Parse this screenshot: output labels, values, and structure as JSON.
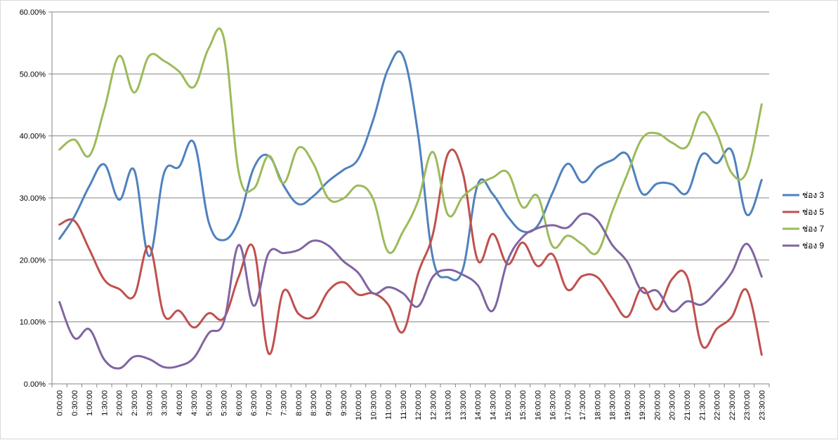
{
  "chart_data": {
    "type": "line",
    "title": "",
    "xlabel": "",
    "ylabel": "",
    "ylim": [
      0,
      60
    ],
    "y_tick_values": [
      0,
      10,
      20,
      30,
      40,
      50,
      60
    ],
    "y_tick_labels": [
      "0.00%",
      "10.00%",
      "20.00%",
      "30.00%",
      "40.00%",
      "50.00%",
      "60.00%"
    ],
    "grid": "horizontal",
    "legend_position": "right",
    "categories": [
      "0:00:00",
      "0:30:00",
      "1:00:00",
      "1:30:00",
      "2:00:00",
      "2:30:00",
      "3:00:00",
      "3:30:00",
      "4:00:00",
      "4:30:00",
      "5:00:00",
      "5:30:00",
      "6:00:00",
      "6:30:00",
      "7:00:00",
      "7:30:00",
      "8:00:00",
      "8:30:00",
      "9:00:00",
      "9:30:00",
      "10:00:00",
      "10:30:00",
      "11:00:00",
      "11:30:00",
      "12:00:00",
      "12:30:00",
      "13:00:00",
      "13:30:00",
      "14:00:00",
      "14:30:00",
      "15:00:00",
      "15:30:00",
      "16:00:00",
      "16:30:00",
      "17:00:00",
      "17:30:00",
      "18:00:00",
      "18:30:00",
      "19:00:00",
      "19:30:00",
      "20:00:00",
      "20:30:00",
      "21:00:00",
      "21:30:00",
      "22:00:00",
      "22:30:00",
      "23:00:00",
      "23:30:00"
    ],
    "series": [
      {
        "name": "ช่อง 3",
        "color": "#4F81BD",
        "values": [
          23.4,
          27.0,
          31.9,
          35.4,
          29.7,
          34.5,
          20.6,
          34.0,
          35.0,
          38.9,
          26.0,
          23.2,
          26.4,
          34.8,
          36.8,
          32.0,
          29.0,
          30.3,
          32.7,
          34.5,
          36.3,
          42.6,
          50.8,
          52.9,
          40.3,
          20.2,
          17.2,
          18.5,
          32.2,
          30.6,
          27.0,
          24.6,
          25.5,
          30.8,
          35.5,
          32.5,
          34.9,
          36.1,
          37.0,
          30.7,
          32.3,
          32.2,
          30.8,
          37.0,
          35.6,
          37.6,
          27.3,
          32.9
        ]
      },
      {
        "name": "ช่อง 5",
        "color": "#C0504D",
        "values": [
          25.7,
          26.3,
          21.7,
          16.8,
          15.3,
          14.2,
          22.2,
          11.1,
          11.8,
          9.1,
          11.4,
          10.6,
          17.3,
          21.9,
          4.9,
          15.0,
          11.3,
          10.9,
          15.0,
          16.4,
          14.4,
          14.6,
          12.8,
          8.4,
          17.8,
          24.2,
          37.1,
          34.0,
          19.9,
          24.2,
          19.3,
          22.8,
          19.0,
          20.9,
          15.2,
          17.4,
          17.2,
          13.8,
          10.8,
          15.5,
          12.0,
          16.9,
          17.3,
          6.2,
          8.9,
          10.8,
          15.1,
          4.7
        ]
      },
      {
        "name": "ช่อง 7",
        "color": "#9BBB59",
        "values": [
          37.8,
          39.4,
          36.8,
          44.3,
          52.9,
          47.0,
          52.9,
          52.1,
          50.4,
          47.9,
          54.2,
          55.8,
          34.1,
          31.5,
          36.8,
          32.4,
          38.1,
          35.5,
          29.9,
          29.9,
          32.0,
          29.8,
          21.3,
          24.6,
          29.5,
          37.4,
          27.3,
          30.2,
          32.1,
          33.3,
          34.1,
          28.5,
          30.3,
          22.2,
          23.9,
          22.5,
          21.2,
          27.8,
          33.8,
          39.6,
          40.4,
          38.9,
          38.3,
          43.8,
          40.4,
          34.0,
          34.2,
          45.1
        ]
      },
      {
        "name": "ช่อง 9",
        "color": "#8064A2",
        "values": [
          13.2,
          7.4,
          8.8,
          3.9,
          2.5,
          4.4,
          4.0,
          2.7,
          2.9,
          4.2,
          8.2,
          10.0,
          22.4,
          12.6,
          21.1,
          21.1,
          21.6,
          23.1,
          22.3,
          19.8,
          17.9,
          14.6,
          15.6,
          14.6,
          12.5,
          17.3,
          18.4,
          17.6,
          15.9,
          11.8,
          19.9,
          23.7,
          25.1,
          25.6,
          25.2,
          27.4,
          26.4,
          22.4,
          19.7,
          14.9,
          15.0,
          11.7,
          13.3,
          12.8,
          15.0,
          18.0,
          22.6,
          17.3
        ]
      }
    ]
  }
}
